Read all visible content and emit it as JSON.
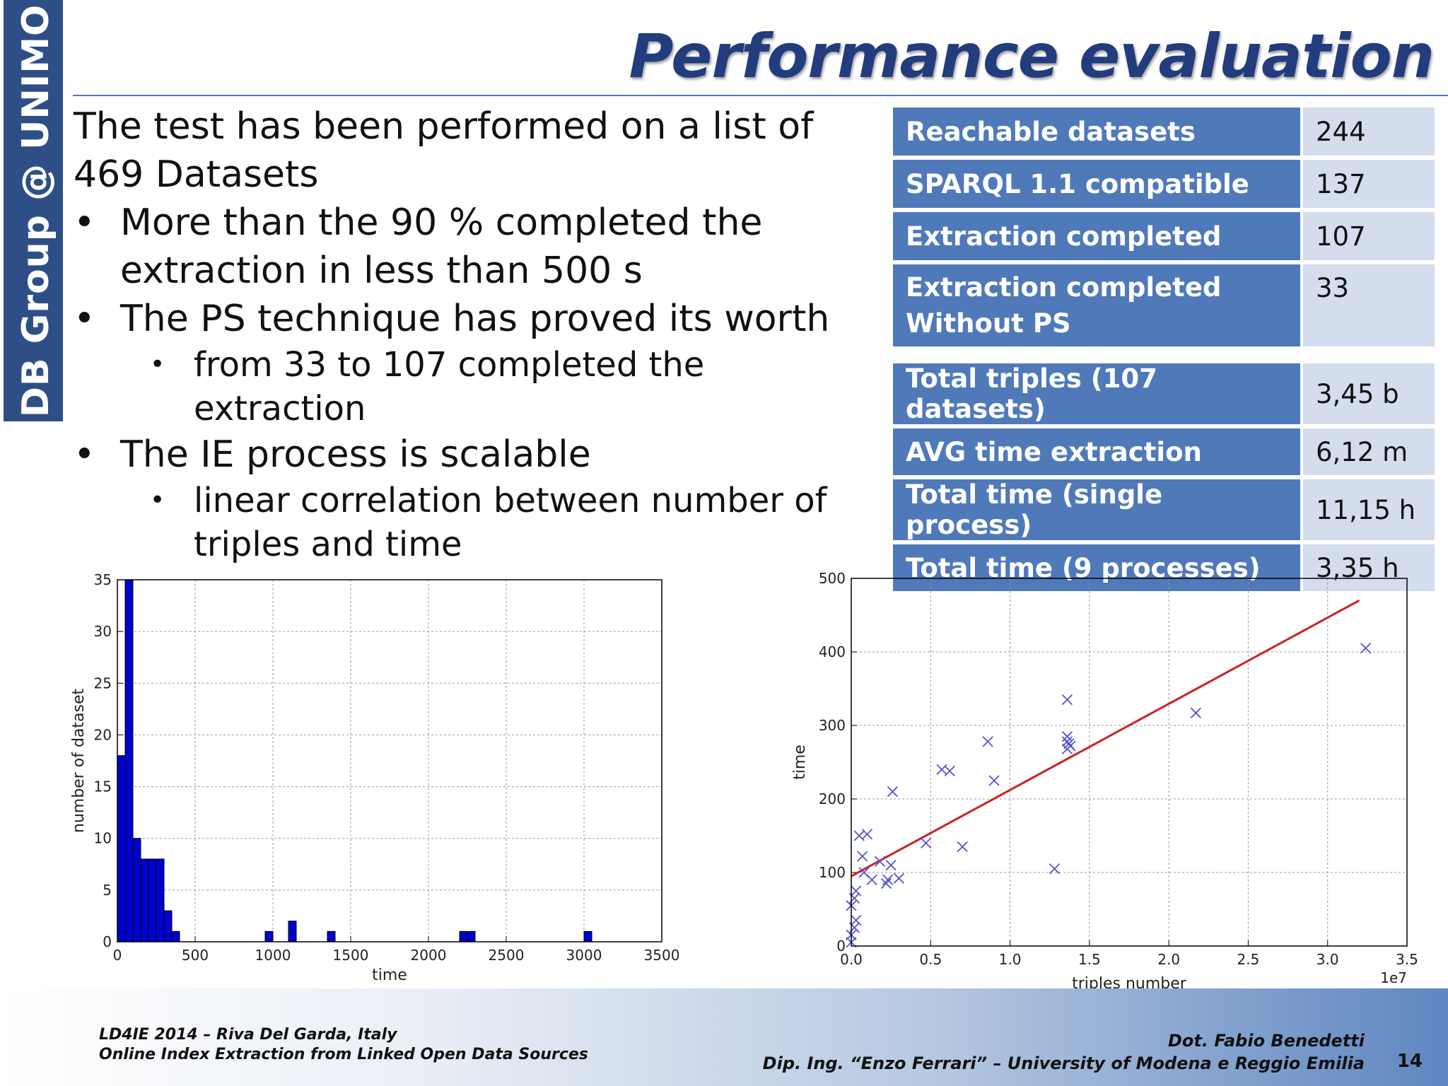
{
  "sidebar": {
    "label": "DB Group @ UNIMO"
  },
  "title": "Performance evaluation",
  "content": {
    "intro": "The test has been performed on a list of 469 Datasets",
    "bullets": [
      {
        "text": "More than the 90 % completed the extraction in less than 500 s",
        "subs": []
      },
      {
        "text": "The PS technique has proved its worth",
        "subs": [
          "from 33 to 107 completed the extraction"
        ]
      },
      {
        "text": "The IE process is scalable",
        "subs": [
          "linear correlation between number of triples and time"
        ]
      }
    ]
  },
  "table1": [
    {
      "label": "Reachable datasets",
      "value": "244"
    },
    {
      "label": "SPARQL 1.1 compatible",
      "value": "137"
    },
    {
      "label": "Extraction completed",
      "value": "107"
    },
    {
      "label": "Extraction completed Without PS",
      "value": "33"
    }
  ],
  "table2": [
    {
      "label": "Total triples (107 datasets)",
      "value": "3,45 b"
    },
    {
      "label": "AVG time extraction",
      "value": "6,12 m"
    },
    {
      "label": "Total time (single process)",
      "value": "11,15 h"
    },
    {
      "label": "Total time (9 processes)",
      "value": "3,35 h"
    }
  ],
  "chart_data": [
    {
      "type": "bar",
      "xlabel": "time",
      "ylabel": "number of dataset",
      "xlim": [
        0,
        3500
      ],
      "ylim": [
        0,
        35
      ],
      "xticks": [
        "0",
        "500",
        "1000",
        "1500",
        "2000",
        "2500",
        "3000",
        "3500"
      ],
      "yticks": [
        "0",
        "5",
        "10",
        "15",
        "20",
        "25",
        "30",
        "35"
      ],
      "grid": true,
      "bin_width": 50,
      "bars": [
        {
          "x": 0,
          "value": 18
        },
        {
          "x": 50,
          "value": 35
        },
        {
          "x": 100,
          "value": 10
        },
        {
          "x": 150,
          "value": 8
        },
        {
          "x": 200,
          "value": 8
        },
        {
          "x": 250,
          "value": 8
        },
        {
          "x": 300,
          "value": 3
        },
        {
          "x": 350,
          "value": 1
        },
        {
          "x": 950,
          "value": 1
        },
        {
          "x": 1100,
          "value": 2
        },
        {
          "x": 1350,
          "value": 1
        },
        {
          "x": 2200,
          "value": 1
        },
        {
          "x": 2250,
          "value": 1
        },
        {
          "x": 3000,
          "value": 1
        }
      ],
      "bar_color": "#0000cc"
    },
    {
      "type": "scatter",
      "xlabel": "triples number",
      "ylabel": "time",
      "x_multiplier_label": "1e7",
      "xlim": [
        0,
        3.5
      ],
      "ylim": [
        0,
        500
      ],
      "xticks": [
        "0.0",
        "0.5",
        "1.0",
        "1.5",
        "2.0",
        "2.5",
        "3.0",
        "3.5"
      ],
      "yticks": [
        "0",
        "100",
        "200",
        "300",
        "400",
        "500"
      ],
      "grid": true,
      "points": [
        [
          0.0,
          5
        ],
        [
          0.0,
          15
        ],
        [
          0.02,
          25
        ],
        [
          0.03,
          35
        ],
        [
          0.0,
          55
        ],
        [
          0.02,
          65
        ],
        [
          0.03,
          75
        ],
        [
          0.05,
          150
        ],
        [
          0.07,
          122
        ],
        [
          0.1,
          152
        ],
        [
          0.08,
          100
        ],
        [
          0.13,
          90
        ],
        [
          0.18,
          115
        ],
        [
          0.22,
          85
        ],
        [
          0.23,
          90
        ],
        [
          0.25,
          110
        ],
        [
          0.3,
          92
        ],
        [
          0.26,
          210
        ],
        [
          0.47,
          140
        ],
        [
          0.57,
          240
        ],
        [
          0.62,
          238
        ],
        [
          0.7,
          135
        ],
        [
          0.86,
          278
        ],
        [
          0.9,
          225
        ],
        [
          1.28,
          105
        ],
        [
          1.36,
          335
        ],
        [
          1.36,
          285
        ],
        [
          1.36,
          278
        ],
        [
          1.37,
          275
        ],
        [
          1.36,
          268
        ],
        [
          1.38,
          272
        ],
        [
          2.17,
          317
        ],
        [
          3.24,
          405
        ]
      ],
      "marker_color": "#5555cc",
      "fit_line": {
        "x": [
          0.0,
          3.2
        ],
        "y": [
          95,
          470
        ],
        "color": "#cc2222"
      }
    }
  ],
  "footer": {
    "left_line1": "LD4IE 2014 – Riva Del Garda, Italy",
    "left_line2": "Online Index Extraction from Linked Open Data Sources",
    "right_line1": "Dot. Fabio Benedetti",
    "right_line2": "Dip. Ing. “Enzo Ferrari” – University of Modena e Reggio Emilia",
    "page": "14"
  }
}
